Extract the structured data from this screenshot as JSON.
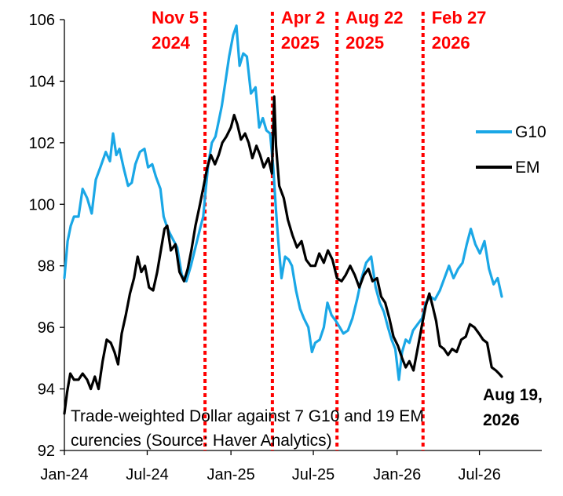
{
  "chart_data": {
    "type": "line",
    "title": "",
    "xlabel": "",
    "ylabel": "",
    "ylim": [
      92,
      106
    ],
    "yticks": [
      92,
      94,
      96,
      98,
      100,
      102,
      104,
      106
    ],
    "x_tick_labels": [
      "Jan-24",
      "Jul-24",
      "Jan-25",
      "Jul-25",
      "Jan-26",
      "Jul-26"
    ],
    "x_tick_dates": [
      "2024-01-01",
      "2024-07-01",
      "2025-01-01",
      "2025-07-01",
      "2026-01-01",
      "2026-07-01"
    ],
    "xlim": [
      "2024-01-01",
      "2026-11-15"
    ],
    "grid": false,
    "legend_position": "right",
    "legend": [
      {
        "name": "G10",
        "color": "#1aa7e6"
      },
      {
        "name": "EM",
        "color": "#000000"
      }
    ],
    "events": [
      {
        "date": "2024-11-05",
        "label_line1": "Nov 5",
        "label_line2": "2024"
      },
      {
        "date": "2025-04-02",
        "label_line1": "Apr 2",
        "label_line2": "2025"
      },
      {
        "date": "2025-08-22",
        "label_line1": "Aug 22",
        "label_line2": "2025"
      },
      {
        "date": "2026-02-27",
        "label_line1": "Feb 27",
        "label_line2": "2026"
      }
    ],
    "event_color": "#ff0000",
    "note_line1": "Trade-weighted Dollar against 7 G10 and 19 EM",
    "note_line2": "curencies (Source: Haver Analytics)",
    "end_label_line1": "Aug 19,",
    "end_label_line2": "2026",
    "series": [
      {
        "name": "G10",
        "color": "#1aa7e6",
        "points": [
          [
            "2024-01-01",
            97.6
          ],
          [
            "2024-01-08",
            98.8
          ],
          [
            "2024-01-15",
            99.3
          ],
          [
            "2024-01-22",
            99.6
          ],
          [
            "2024-02-01",
            99.6
          ],
          [
            "2024-02-10",
            100.5
          ],
          [
            "2024-02-20",
            100.2
          ],
          [
            "2024-03-01",
            99.7
          ],
          [
            "2024-03-10",
            100.8
          ],
          [
            "2024-03-20",
            101.2
          ],
          [
            "2024-04-01",
            101.7
          ],
          [
            "2024-04-10",
            101.4
          ],
          [
            "2024-04-17",
            102.3
          ],
          [
            "2024-04-24",
            101.6
          ],
          [
            "2024-05-01",
            101.8
          ],
          [
            "2024-05-10",
            101.2
          ],
          [
            "2024-05-20",
            100.6
          ],
          [
            "2024-05-28",
            100.7
          ],
          [
            "2024-06-05",
            101.3
          ],
          [
            "2024-06-15",
            101.7
          ],
          [
            "2024-06-25",
            101.8
          ],
          [
            "2024-07-03",
            101.2
          ],
          [
            "2024-07-12",
            101.3
          ],
          [
            "2024-07-20",
            100.9
          ],
          [
            "2024-07-30",
            100.5
          ],
          [
            "2024-08-06",
            99.6
          ],
          [
            "2024-08-15",
            99.2
          ],
          [
            "2024-08-25",
            98.9
          ],
          [
            "2024-09-05",
            98.6
          ],
          [
            "2024-09-15",
            97.7
          ],
          [
            "2024-09-25",
            97.5
          ],
          [
            "2024-10-05",
            98.0
          ],
          [
            "2024-10-15",
            98.6
          ],
          [
            "2024-10-25",
            99.2
          ],
          [
            "2024-11-01",
            99.6
          ],
          [
            "2024-11-06",
            100.4
          ],
          [
            "2024-11-12",
            101.3
          ],
          [
            "2024-11-20",
            102.0
          ],
          [
            "2024-11-28",
            102.2
          ],
          [
            "2024-12-05",
            102.7
          ],
          [
            "2024-12-12",
            103.2
          ],
          [
            "2024-12-20",
            104.0
          ],
          [
            "2024-12-28",
            104.8
          ],
          [
            "2025-01-06",
            105.5
          ],
          [
            "2025-01-13",
            105.8
          ],
          [
            "2025-01-20",
            104.5
          ],
          [
            "2025-01-28",
            104.9
          ],
          [
            "2025-02-05",
            104.8
          ],
          [
            "2025-02-14",
            103.6
          ],
          [
            "2025-02-24",
            103.8
          ],
          [
            "2025-03-04",
            102.5
          ],
          [
            "2025-03-12",
            102.8
          ],
          [
            "2025-03-20",
            102.4
          ],
          [
            "2025-03-28",
            102.3
          ],
          [
            "2025-04-04",
            101.2
          ],
          [
            "2025-04-10",
            99.8
          ],
          [
            "2025-04-15",
            98.8
          ],
          [
            "2025-04-22",
            97.6
          ],
          [
            "2025-04-30",
            98.3
          ],
          [
            "2025-05-08",
            98.2
          ],
          [
            "2025-05-15",
            98.0
          ],
          [
            "2025-05-24",
            97.2
          ],
          [
            "2025-06-02",
            96.6
          ],
          [
            "2025-06-10",
            96.3
          ],
          [
            "2025-06-20",
            96.0
          ],
          [
            "2025-06-28",
            95.2
          ],
          [
            "2025-07-05",
            95.5
          ],
          [
            "2025-07-15",
            95.6
          ],
          [
            "2025-07-24",
            96.0
          ],
          [
            "2025-08-01",
            96.8
          ],
          [
            "2025-08-10",
            96.4
          ],
          [
            "2025-08-20",
            96.2
          ],
          [
            "2025-08-28",
            96.0
          ],
          [
            "2025-09-05",
            95.8
          ],
          [
            "2025-09-15",
            95.9
          ],
          [
            "2025-09-25",
            96.3
          ],
          [
            "2025-10-05",
            96.9
          ],
          [
            "2025-10-15",
            97.6
          ],
          [
            "2025-10-25",
            98.1
          ],
          [
            "2025-11-05",
            98.3
          ],
          [
            "2025-11-15",
            97.3
          ],
          [
            "2025-11-24",
            96.8
          ],
          [
            "2025-12-03",
            96.5
          ],
          [
            "2025-12-12",
            96.0
          ],
          [
            "2025-12-20",
            95.6
          ],
          [
            "2025-12-28",
            95.3
          ],
          [
            "2026-01-05",
            94.3
          ],
          [
            "2026-01-12",
            95.2
          ],
          [
            "2026-01-20",
            95.6
          ],
          [
            "2026-01-28",
            95.5
          ],
          [
            "2026-02-05",
            95.9
          ],
          [
            "2026-02-15",
            96.1
          ],
          [
            "2026-02-25",
            96.3
          ],
          [
            "2026-03-05",
            96.8
          ],
          [
            "2026-03-15",
            97.0
          ],
          [
            "2026-03-25",
            96.9
          ],
          [
            "2026-04-05",
            97.2
          ],
          [
            "2026-04-15",
            97.6
          ],
          [
            "2026-04-25",
            98.0
          ],
          [
            "2026-05-05",
            97.6
          ],
          [
            "2026-05-15",
            97.9
          ],
          [
            "2026-05-25",
            98.1
          ],
          [
            "2026-06-03",
            98.7
          ],
          [
            "2026-06-12",
            99.2
          ],
          [
            "2026-06-22",
            98.7
          ],
          [
            "2026-07-02",
            98.4
          ],
          [
            "2026-07-12",
            98.8
          ],
          [
            "2026-07-22",
            97.9
          ],
          [
            "2026-08-01",
            97.4
          ],
          [
            "2026-08-10",
            97.6
          ],
          [
            "2026-08-19",
            97.0
          ]
        ]
      },
      {
        "name": "EM",
        "color": "#000000",
        "points": [
          [
            "2024-01-01",
            93.2
          ],
          [
            "2024-01-07",
            93.9
          ],
          [
            "2024-01-14",
            94.5
          ],
          [
            "2024-01-22",
            94.3
          ],
          [
            "2024-02-01",
            94.3
          ],
          [
            "2024-02-10",
            94.5
          ],
          [
            "2024-02-20",
            94.3
          ],
          [
            "2024-02-28",
            94.0
          ],
          [
            "2024-03-08",
            94.4
          ],
          [
            "2024-03-16",
            94.0
          ],
          [
            "2024-03-25",
            94.9
          ],
          [
            "2024-04-03",
            95.6
          ],
          [
            "2024-04-12",
            95.5
          ],
          [
            "2024-04-20",
            95.2
          ],
          [
            "2024-04-28",
            94.8
          ],
          [
            "2024-05-06",
            95.8
          ],
          [
            "2024-05-15",
            96.4
          ],
          [
            "2024-05-24",
            97.1
          ],
          [
            "2024-06-02",
            97.6
          ],
          [
            "2024-06-10",
            98.3
          ],
          [
            "2024-06-18",
            97.8
          ],
          [
            "2024-06-26",
            98.0
          ],
          [
            "2024-07-05",
            97.3
          ],
          [
            "2024-07-14",
            97.2
          ],
          [
            "2024-07-23",
            97.8
          ],
          [
            "2024-08-01",
            98.6
          ],
          [
            "2024-08-08",
            99.2
          ],
          [
            "2024-08-14",
            99.3
          ],
          [
            "2024-08-22",
            98.5
          ],
          [
            "2024-09-01",
            98.7
          ],
          [
            "2024-09-10",
            97.8
          ],
          [
            "2024-09-20",
            97.5
          ],
          [
            "2024-09-28",
            97.9
          ],
          [
            "2024-10-06",
            98.5
          ],
          [
            "2024-10-15",
            99.3
          ],
          [
            "2024-10-25",
            100.0
          ],
          [
            "2024-11-02",
            100.6
          ],
          [
            "2024-11-10",
            101.2
          ],
          [
            "2024-11-18",
            101.6
          ],
          [
            "2024-11-27",
            101.3
          ],
          [
            "2024-12-05",
            101.6
          ],
          [
            "2024-12-13",
            102.0
          ],
          [
            "2024-12-22",
            102.2
          ],
          [
            "2025-01-01",
            102.5
          ],
          [
            "2025-01-08",
            102.9
          ],
          [
            "2025-01-15",
            102.6
          ],
          [
            "2025-01-23",
            102.1
          ],
          [
            "2025-02-01",
            102.3
          ],
          [
            "2025-02-09",
            102.0
          ],
          [
            "2025-02-17",
            101.5
          ],
          [
            "2025-02-26",
            101.9
          ],
          [
            "2025-03-06",
            101.6
          ],
          [
            "2025-03-14",
            101.2
          ],
          [
            "2025-03-24",
            101.5
          ],
          [
            "2025-04-01",
            101.0
          ],
          [
            "2025-04-06",
            103.5
          ],
          [
            "2025-04-10",
            101.9
          ],
          [
            "2025-04-17",
            100.6
          ],
          [
            "2025-04-27",
            100.2
          ],
          [
            "2025-05-06",
            99.5
          ],
          [
            "2025-05-16",
            99.0
          ],
          [
            "2025-05-26",
            98.6
          ],
          [
            "2025-06-05",
            98.8
          ],
          [
            "2025-06-15",
            98.2
          ],
          [
            "2025-06-25",
            98.0
          ],
          [
            "2025-07-05",
            98.0
          ],
          [
            "2025-07-14",
            98.4
          ],
          [
            "2025-07-24",
            98.1
          ],
          [
            "2025-08-02",
            98.5
          ],
          [
            "2025-08-12",
            98.2
          ],
          [
            "2025-08-22",
            97.6
          ],
          [
            "2025-09-01",
            97.5
          ],
          [
            "2025-09-10",
            97.7
          ],
          [
            "2025-09-20",
            98.0
          ],
          [
            "2025-09-30",
            97.7
          ],
          [
            "2025-10-10",
            97.3
          ],
          [
            "2025-10-20",
            97.7
          ],
          [
            "2025-10-30",
            97.9
          ],
          [
            "2025-11-08",
            97.5
          ],
          [
            "2025-11-18",
            97.6
          ],
          [
            "2025-11-27",
            97.0
          ],
          [
            "2025-12-06",
            96.8
          ],
          [
            "2025-12-15",
            96.3
          ],
          [
            "2025-12-24",
            95.7
          ],
          [
            "2026-01-03",
            95.4
          ],
          [
            "2026-01-12",
            95.0
          ],
          [
            "2026-01-20",
            94.7
          ],
          [
            "2026-01-28",
            94.9
          ],
          [
            "2026-02-06",
            94.6
          ],
          [
            "2026-02-15",
            95.3
          ],
          [
            "2026-02-25",
            96.1
          ],
          [
            "2026-03-05",
            96.7
          ],
          [
            "2026-03-13",
            97.1
          ],
          [
            "2026-03-20",
            96.7
          ],
          [
            "2026-03-28",
            96.2
          ],
          [
            "2026-04-05",
            95.4
          ],
          [
            "2026-04-14",
            95.3
          ],
          [
            "2026-04-23",
            95.1
          ],
          [
            "2026-05-02",
            95.3
          ],
          [
            "2026-05-12",
            95.2
          ],
          [
            "2026-05-22",
            95.6
          ],
          [
            "2026-06-01",
            95.7
          ],
          [
            "2026-06-10",
            96.1
          ],
          [
            "2026-06-20",
            96.0
          ],
          [
            "2026-06-30",
            95.8
          ],
          [
            "2026-07-09",
            95.6
          ],
          [
            "2026-07-18",
            95.5
          ],
          [
            "2026-07-28",
            94.7
          ],
          [
            "2026-08-06",
            94.6
          ],
          [
            "2026-08-13",
            94.5
          ],
          [
            "2026-08-19",
            94.4
          ]
        ]
      }
    ]
  }
}
